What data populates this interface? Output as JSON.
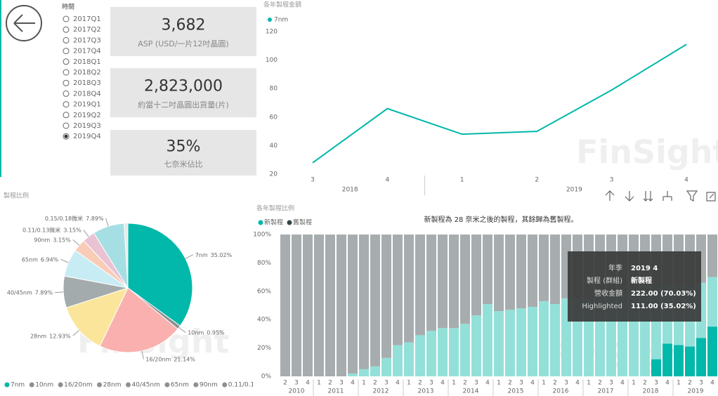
{
  "slicer": {
    "title": "時間",
    "items": [
      "2017Q1",
      "2017Q2",
      "2017Q3",
      "2017Q4",
      "2018Q1",
      "2018Q2",
      "2018Q3",
      "2018Q4",
      "2019Q1",
      "2019Q2",
      "2019Q3",
      "2019Q4"
    ],
    "selected": "2019Q4"
  },
  "cards": [
    {
      "value": "3,682",
      "label": "ASP (USD/一片12吋晶圓)"
    },
    {
      "value": "2,823,000",
      "label": "約當十二吋晶圓出貨量(片)"
    },
    {
      "value": "35%",
      "label": "七奈米佔比"
    }
  ],
  "watermark": "FinSight",
  "tooltip": {
    "rows": [
      {
        "label": "年季",
        "value": "2019 4"
      },
      {
        "label": "製程 (群組)",
        "value": "新製程"
      },
      {
        "label": "營收金額",
        "value": "222.00 (70.03%)"
      },
      {
        "value": "111.00 (35.02%)"
      }
    ]
  },
  "chart_data": [
    {
      "type": "line",
      "title": "各年製程金額",
      "categories": [
        "3",
        "4",
        "1",
        "2",
        "3",
        "4"
      ],
      "years": [
        "2018",
        "2018",
        "2019",
        "2019",
        "2019",
        "2019"
      ],
      "series": [
        {
          "name": "7nm",
          "color": "#01B8AA",
          "values": [
            28,
            66,
            48,
            50,
            79,
            111
          ]
        }
      ],
      "ylim": [
        14,
        127
      ],
      "yticks": [
        20,
        40,
        60,
        80,
        100,
        120
      ]
    },
    {
      "type": "pie",
      "title": "製程比例",
      "categories": [
        "7nm",
        "10nm",
        "16/20nm",
        "28nm",
        "40/45nm",
        "65nm",
        "90nm",
        "0.11/0.13微米",
        "0.15/0.18微米"
      ],
      "values": [
        35.02,
        0.95,
        21.14,
        12.93,
        7.89,
        6.94,
        3.15,
        3.15,
        7.89
      ],
      "value_labels": [
        "35.02%",
        "0.95%",
        "21.14%",
        "12.93%",
        "7.89%",
        "6.94%",
        "3.15%",
        "3.15%",
        "7.89%"
      ],
      "colors": [
        "#01B8AA",
        "#8a9193",
        "#F9B0AE",
        "#FBE59A",
        "#a4abac",
        "#c8ecf3",
        "#f9ccb8",
        "#e9c2d3",
        "#a6dfe3"
      ],
      "legend_colors": [
        "#01B8AA",
        "#8a9193",
        "#8a9193",
        "#8a9193",
        "#8a9193",
        "#8a9193",
        "#8a9193",
        "#8a9193",
        "#8a9193"
      ]
    },
    {
      "type": "stacked-bar",
      "title": "各年製程比例",
      "subtitle": "新製程為 28 奈米之後的製程，其餘歸為舊製程。",
      "categories": [
        "2",
        "3",
        "4",
        "1",
        "2",
        "3",
        "4",
        "1",
        "2",
        "3",
        "4",
        "1",
        "2",
        "3",
        "4",
        "1",
        "2",
        "3",
        "4",
        "1",
        "2",
        "3",
        "4",
        "1",
        "2",
        "3",
        "4",
        "1",
        "2",
        "3",
        "4",
        "1",
        "2",
        "3",
        "4",
        "1",
        "2",
        "3",
        "4"
      ],
      "years": [
        "2010",
        "2010",
        "2010",
        "2011",
        "2011",
        "2011",
        "2011",
        "2012",
        "2012",
        "2012",
        "2012",
        "2013",
        "2013",
        "2013",
        "2013",
        "2014",
        "2014",
        "2014",
        "2014",
        "2015",
        "2015",
        "2015",
        "2015",
        "2016",
        "2016",
        "2016",
        "2016",
        "2017",
        "2017",
        "2017",
        "2017",
        "2018",
        "2018",
        "2018",
        "2018",
        "2019",
        "2019",
        "2019",
        "2019"
      ],
      "series": [
        {
          "name": "新製程",
          "color": "#93e0d9",
          "legend_color": "#01B8AA",
          "values": [
            0,
            0,
            0,
            0,
            0,
            0,
            2,
            5,
            7,
            13,
            22,
            24,
            29,
            32,
            34,
            34,
            37,
            43,
            51,
            46,
            47,
            48,
            49,
            53,
            51,
            55,
            55,
            55,
            60,
            58,
            60,
            62,
            65,
            63,
            65,
            65,
            63,
            66,
            70.03
          ]
        },
        {
          "name": "舊製程",
          "color": "#a7adae",
          "legend_color": "#374649",
          "values": [
            100,
            100,
            100,
            100,
            100,
            100,
            98,
            95,
            93,
            87,
            78,
            76,
            71,
            68,
            66,
            66,
            63,
            57,
            49,
            54,
            53,
            52,
            51,
            47,
            49,
            45,
            45,
            45,
            40,
            42,
            40,
            38,
            35,
            37,
            35,
            35,
            37,
            34,
            29.97
          ]
        }
      ],
      "highlight": {
        "name": "Highlighted",
        "color": "#01B8AA",
        "values": [
          null,
          null,
          null,
          null,
          null,
          null,
          null,
          null,
          null,
          null,
          null,
          null,
          null,
          null,
          null,
          null,
          null,
          null,
          null,
          null,
          null,
          null,
          null,
          null,
          null,
          null,
          null,
          null,
          null,
          null,
          null,
          null,
          null,
          12,
          23,
          22,
          21,
          27,
          35.02
        ]
      },
      "ylim": [
        0,
        100
      ],
      "yticks": [
        {
          "value": 0,
          "label": "0%"
        },
        {
          "value": 20,
          "label": "20%"
        },
        {
          "value": 40,
          "label": "40%"
        },
        {
          "value": 60,
          "label": "60%"
        },
        {
          "value": 80,
          "label": "80%"
        },
        {
          "value": 100,
          "label": "100%"
        }
      ]
    }
  ]
}
